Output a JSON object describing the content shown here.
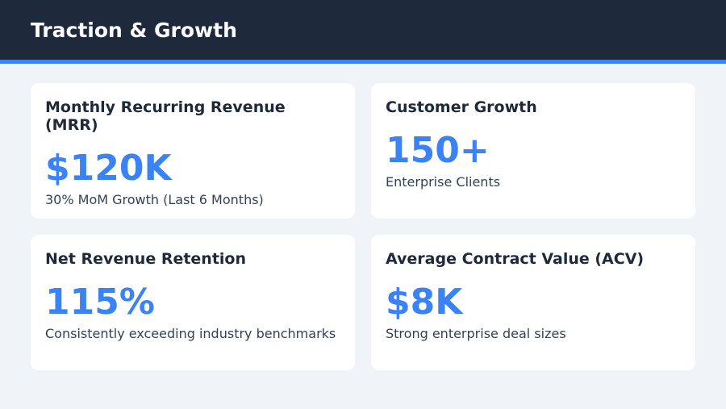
{
  "header": {
    "title": "Traction & Growth"
  },
  "cards": [
    {
      "title": "Monthly Recurring Revenue (MRR)",
      "value": "$120K",
      "caption": "30% MoM Growth (Last 6 Months)"
    },
    {
      "title": "Customer Growth",
      "value": "150+",
      "caption": "Enterprise Clients"
    },
    {
      "title": "Net Revenue Retention",
      "value": "115%",
      "caption": "Consistently exceeding industry benchmarks"
    },
    {
      "title": "Average Contract Value (ACV)",
      "value": "$8K",
      "caption": "Strong enterprise deal sizes"
    }
  ]
}
